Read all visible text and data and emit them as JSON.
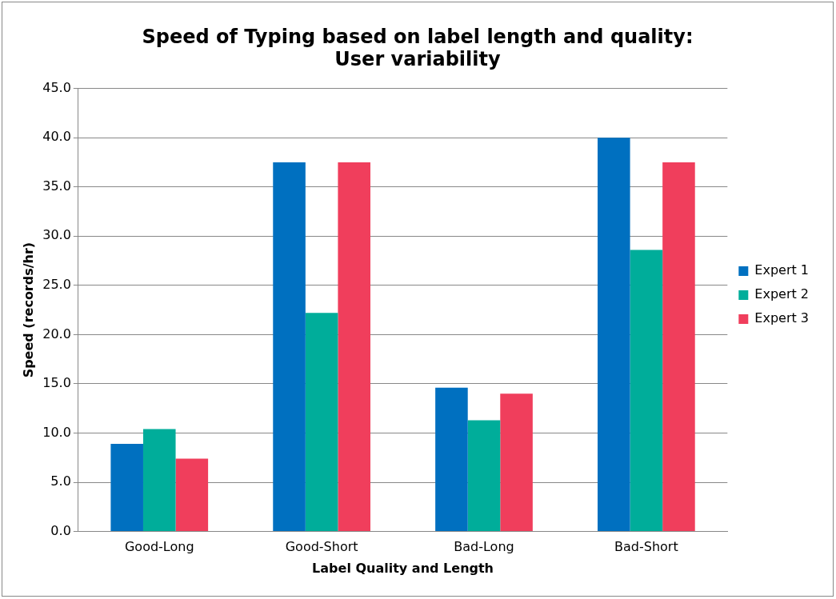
{
  "chart_data": {
    "type": "bar",
    "title": "Speed of Typing based on label length and quality:\nUser variability",
    "xlabel": "Label Quality and Length",
    "ylabel": "Speed (records/hr)",
    "categories": [
      "Good-Long",
      "Good-Short",
      "Bad-Long",
      "Bad-Short"
    ],
    "series": [
      {
        "name": "Expert 1",
        "color": "#0070c0",
        "values": [
          8.9,
          37.5,
          14.6,
          40.0
        ]
      },
      {
        "name": "Expert 2",
        "color": "#00ad9a",
        "values": [
          10.4,
          22.2,
          11.3,
          28.6
        ]
      },
      {
        "name": "Expert 3",
        "color": "#f03e5c",
        "values": [
          7.4,
          37.5,
          14.0,
          37.5
        ]
      }
    ],
    "ylim": [
      0,
      45
    ],
    "yticks": [
      {
        "value": 0,
        "label": "0.0"
      },
      {
        "value": 5,
        "label": "5.0"
      },
      {
        "value": 10,
        "label": "10.0"
      },
      {
        "value": 15,
        "label": "15.0"
      },
      {
        "value": 20,
        "label": "20.0"
      },
      {
        "value": 25,
        "label": "25.0"
      },
      {
        "value": 30,
        "label": "30.0"
      },
      {
        "value": 35,
        "label": "35.0"
      },
      {
        "value": 40,
        "label": "40.0"
      },
      {
        "value": 45,
        "label": "45.0"
      }
    ],
    "grid": "y",
    "legend": "right"
  }
}
